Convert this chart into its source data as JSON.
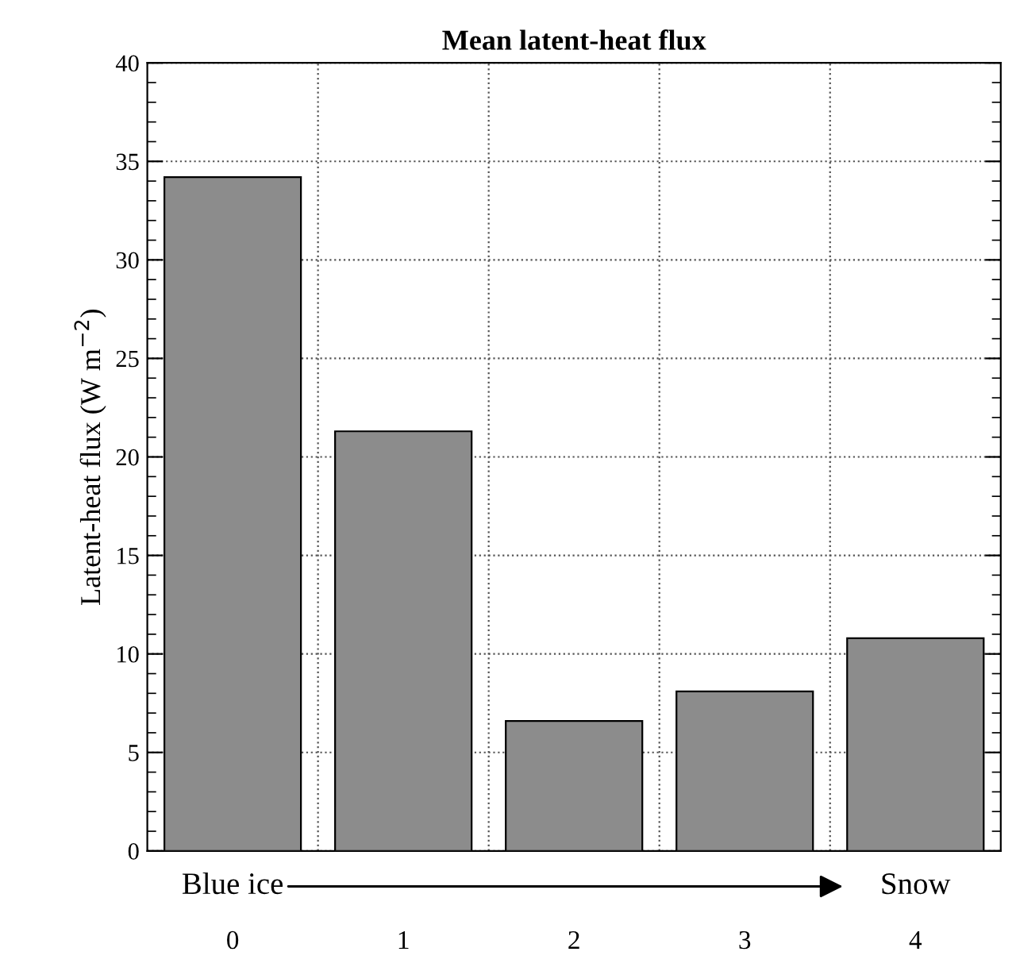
{
  "chart_data": {
    "type": "bar",
    "title": "Mean latent-heat flux",
    "ylabel": "Latent-heat flux (W m$^{−2}$)",
    "categories": [
      "0",
      "1",
      "2",
      "3",
      "4"
    ],
    "values": [
      34.2,
      21.3,
      6.6,
      8.1,
      10.8
    ],
    "color": "#8c8c8c",
    "ylim": [
      0,
      40
    ],
    "yticks": [
      0,
      5,
      10,
      15,
      20,
      25,
      30,
      35,
      40
    ],
    "grid": true,
    "annotations": [
      "Blue ice",
      "Snow"
    ]
  }
}
